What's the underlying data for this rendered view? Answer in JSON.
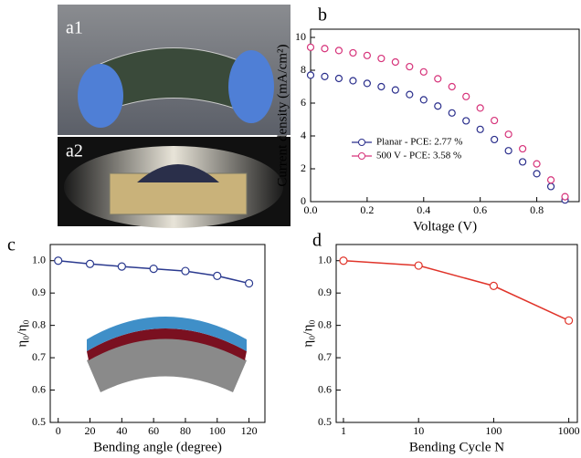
{
  "photos": [
    {
      "label": "a1"
    },
    {
      "label": "a2"
    }
  ],
  "chart_data": [
    {
      "type": "scatter",
      "panel_label": "b",
      "xlabel": "Voltage (V)",
      "ylabel": "Current density (mA/cm²)",
      "x": [
        0,
        0.05,
        0.1,
        0.15,
        0.2,
        0.25,
        0.3,
        0.35,
        0.4,
        0.45,
        0.5,
        0.55,
        0.6,
        0.65,
        0.7,
        0.75,
        0.8,
        0.85,
        0.9
      ],
      "series": [
        {
          "name": "Planar - PCE: 2.77 %",
          "color": "#2b2f8c",
          "values": [
            7.7,
            7.62,
            7.5,
            7.36,
            7.2,
            7.0,
            6.8,
            6.52,
            6.2,
            5.82,
            5.4,
            4.92,
            4.4,
            3.78,
            3.1,
            2.42,
            1.7,
            0.92,
            0.1
          ]
        },
        {
          "name": "500 V  - PCE: 3.58 %",
          "color": "#d6337a",
          "values": [
            9.4,
            9.32,
            9.2,
            9.06,
            8.9,
            8.72,
            8.5,
            8.22,
            7.9,
            7.48,
            7.0,
            6.4,
            5.7,
            4.94,
            4.1,
            3.22,
            2.3,
            1.32,
            0.3
          ]
        }
      ],
      "xlim": [
        0,
        0.95
      ],
      "xticks": [
        {
          "value": 0,
          "label": "0.0"
        },
        0.2,
        0.4,
        0.6,
        0.8
      ],
      "ylim": [
        0,
        10.5
      ],
      "yticks": [
        0,
        2,
        4,
        6,
        8,
        10
      ],
      "legend": "lower-left"
    },
    {
      "type": "line",
      "panel_label": "c",
      "xlabel": "Bending angle (degree)",
      "ylabel": "η₀/η₀",
      "x": [
        0,
        20,
        40,
        60,
        80,
        100,
        120
      ],
      "series": [
        {
          "color": "#2b3a8f",
          "values": [
            1.0,
            0.99,
            0.982,
            0.975,
            0.968,
            0.953,
            0.93
          ]
        }
      ],
      "xlim": [
        -5,
        130
      ],
      "xticks": [
        0,
        20,
        40,
        60,
        80,
        100,
        120
      ],
      "ylim": [
        0.5,
        1.05
      ],
      "yticks": [
        0.5,
        0.6,
        0.7,
        0.8,
        0.9,
        {
          "value": 1,
          "label": "1.0"
        }
      ]
    },
    {
      "type": "line",
      "panel_label": "d",
      "xlabel": "Bending Cycle N",
      "ylabel": "η₀/η₀",
      "log_x": true,
      "x": [
        1,
        10,
        100,
        1000
      ],
      "series": [
        {
          "color": "#e0342a",
          "values": [
            1.0,
            0.985,
            0.922,
            0.815
          ]
        }
      ],
      "xlim": [
        0.8,
        1300
      ],
      "xticks": [
        1,
        10,
        100,
        1000
      ],
      "ylim": [
        0.5,
        1.05
      ],
      "yticks": [
        0.5,
        0.6,
        0.7,
        0.8,
        0.9,
        {
          "value": 1,
          "label": "1.0"
        }
      ]
    }
  ]
}
